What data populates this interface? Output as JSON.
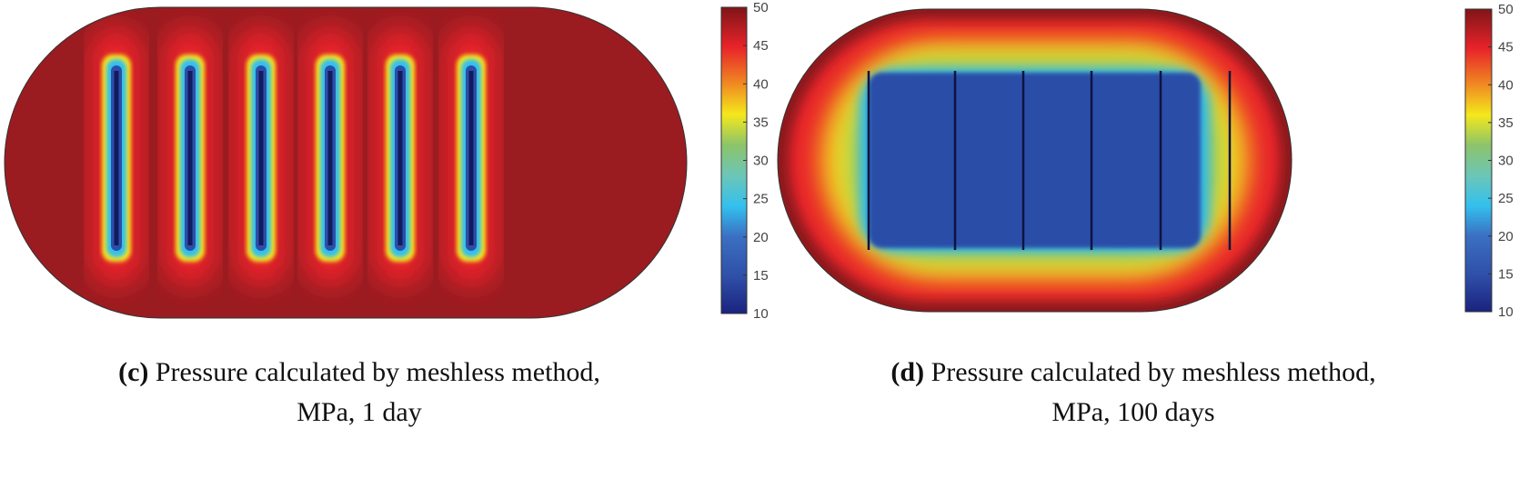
{
  "chart_data": [
    {
      "type": "heatmap",
      "panel": "(c)",
      "caption_text": "Pressure calculated by meshless method,",
      "caption_line2": "MPa, 1 day",
      "colorbar": {
        "min": 10,
        "max": 50,
        "ticks": [
          "50",
          "45",
          "40",
          "35",
          "30",
          "25",
          "20",
          "15",
          "10"
        ],
        "colormap": "jet"
      },
      "fractures": 6,
      "background_value": 50,
      "fracture_value": 10
    },
    {
      "type": "heatmap",
      "panel": "(d)",
      "caption_text": "Pressure calculated by meshless method,",
      "caption_line2": "MPa, 100 days",
      "colorbar": {
        "min": 10,
        "max": 50,
        "ticks": [
          "50",
          "45",
          "40",
          "35",
          "30",
          "25",
          "20",
          "15",
          "10"
        ],
        "colormap": "jet"
      },
      "fractures": 6,
      "background_value": 50,
      "fracture_value": 15
    }
  ]
}
